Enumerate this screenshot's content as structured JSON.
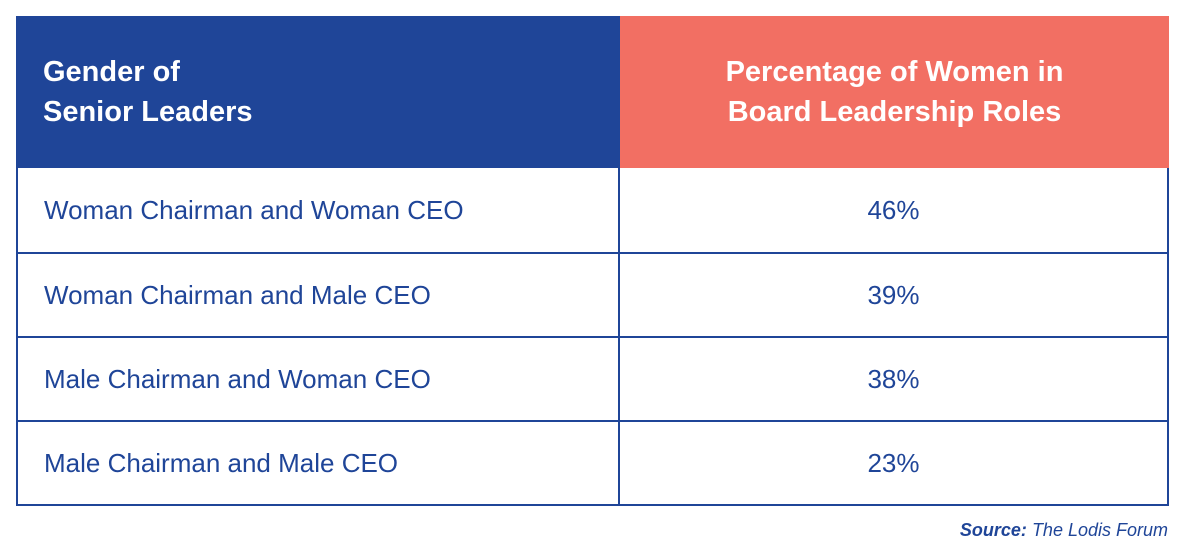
{
  "table": {
    "headers": [
      "Gender of\nSenior Leaders",
      "Percentage of Women in\nBoard Leadership Roles"
    ],
    "header_lines": {
      "left": [
        "Gender of",
        "Senior Leaders"
      ],
      "right": [
        "Percentage of Women in",
        "Board Leadership Roles"
      ]
    },
    "rows": [
      {
        "label": "Woman Chairman and Woman CEO",
        "value": "46%"
      },
      {
        "label": "Woman Chairman and Male CEO",
        "value": "39%"
      },
      {
        "label": "Male Chairman and Woman CEO",
        "value": "38%"
      },
      {
        "label": "Male Chairman and Male CEO",
        "value": "23%"
      }
    ]
  },
  "source": {
    "label": "Source:",
    "text": "The Lodis Forum"
  },
  "colors": {
    "blue": "#1f4598",
    "coral": "#f26f63"
  },
  "chart_data": {
    "type": "table",
    "title": "",
    "columns": [
      "Gender of Senior Leaders",
      "Percentage of Women in Board Leadership Roles"
    ],
    "categories": [
      "Woman Chairman and Woman CEO",
      "Woman Chairman and Male CEO",
      "Male Chairman and Woman CEO",
      "Male Chairman and Male CEO"
    ],
    "values": [
      46,
      39,
      38,
      23
    ],
    "unit": "%",
    "source": "The Lodis Forum"
  }
}
